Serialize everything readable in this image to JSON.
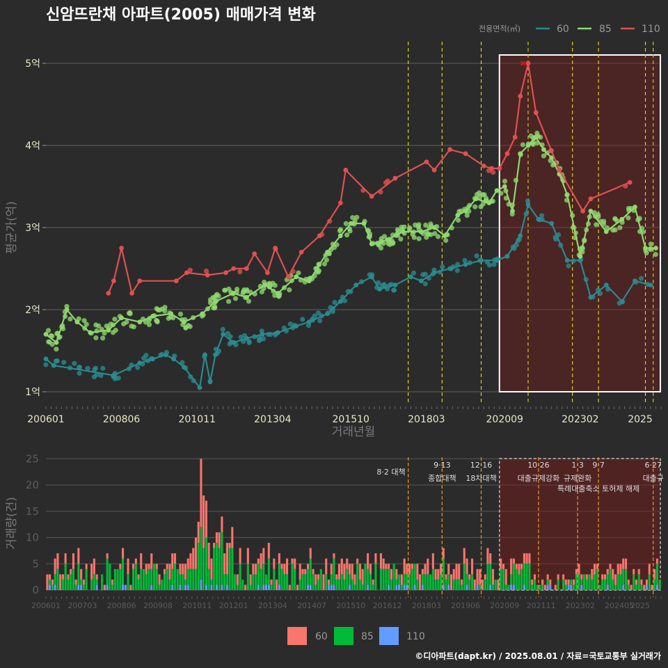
{
  "title": "신암뜨란채 아파트(2005) 매매가격 변화",
  "footer": "©디아파트(dapt.kr) / 2025.08.01 / 자료=국토교통부 실거래가",
  "colors": {
    "s60": "#2b8a8f",
    "s85": "#8fd870",
    "s110": "#e05050",
    "v60": "#f8766d",
    "v85": "#00ba38",
    "v110": "#619cff"
  },
  "chart_data": [
    {
      "type": "line",
      "xlabel": "거래년월",
      "ylabel": "평균가(억)",
      "legend_title": "전용면적(㎡)",
      "legend_position": "top-right",
      "x_ticks": [
        "200601",
        "200806",
        "201011",
        "201304",
        "201510",
        "201803",
        "202009",
        "202302",
        "2025"
      ],
      "y_ticks": [
        "1억",
        "2억",
        "3억",
        "4억",
        "5억"
      ],
      "y_range": [
        0.8,
        5.3
      ],
      "grid": true,
      "highlight_box": {
        "from": "2020-07",
        "to": "2025-09"
      },
      "series": [
        {
          "name": "60",
          "points": [
            [
              "2006-01",
              1.4
            ],
            [
              "2006-04",
              1.32
            ],
            [
              "2008-03",
              1.2
            ],
            [
              "2009-01",
              1.35
            ],
            [
              "2009-06",
              1.4
            ],
            [
              "2009-11",
              1.45
            ],
            [
              "2010-02",
              1.4
            ],
            [
              "2010-06",
              1.3
            ],
            [
              "2010-12",
              1.05
            ],
            [
              "2011-02",
              1.45
            ],
            [
              "2011-04",
              1.12
            ],
            [
              "2011-06",
              1.45
            ],
            [
              "2011-09",
              1.7
            ],
            [
              "2012-01",
              1.6
            ],
            [
              "2012-06",
              1.65
            ],
            [
              "2012-12",
              1.7
            ],
            [
              "2013-06",
              1.72
            ],
            [
              "2014-01",
              1.8
            ],
            [
              "2014-06",
              1.85
            ],
            [
              "2015-01",
              1.95
            ],
            [
              "2015-06",
              2.1
            ],
            [
              "2015-12",
              2.3
            ],
            [
              "2016-06",
              2.4
            ],
            [
              "2016-09",
              2.25
            ],
            [
              "2017-03",
              2.3
            ],
            [
              "2017-09",
              2.4
            ],
            [
              "2018-01",
              2.35
            ],
            [
              "2018-06",
              2.45
            ],
            [
              "2018-12",
              2.5
            ],
            [
              "2019-06",
              2.55
            ],
            [
              "2019-12",
              2.6
            ],
            [
              "2020-06",
              2.6
            ],
            [
              "2020-10",
              2.65
            ],
            [
              "2021-03",
              2.9
            ],
            [
              "2021-06",
              3.28
            ],
            [
              "2021-10",
              3.1
            ],
            [
              "2022-03",
              3.05
            ],
            [
              "2022-09",
              2.6
            ],
            [
              "2023-02",
              2.6
            ],
            [
              "2023-06",
              2.15
            ],
            [
              "2023-12",
              2.3
            ],
            [
              "2024-06",
              2.1
            ],
            [
              "2024-11",
              2.35
            ],
            [
              "2025-05",
              2.3
            ]
          ]
        },
        {
          "name": "85",
          "points": [
            [
              "2006-01",
              1.7
            ],
            [
              "2006-05",
              1.6
            ],
            [
              "2006-09",
              2.0
            ],
            [
              "2007-01",
              1.85
            ],
            [
              "2007-06",
              1.72
            ],
            [
              "2008-01",
              1.75
            ],
            [
              "2008-06",
              1.9
            ],
            [
              "2009-01",
              1.85
            ],
            [
              "2009-06",
              1.92
            ],
            [
              "2010-01",
              1.95
            ],
            [
              "2010-06",
              1.85
            ],
            [
              "2011-01",
              1.95
            ],
            [
              "2011-06",
              2.1
            ],
            [
              "2012-01",
              2.2
            ],
            [
              "2012-06",
              2.15
            ],
            [
              "2013-01",
              2.3
            ],
            [
              "2013-06",
              2.2
            ],
            [
              "2014-01",
              2.4
            ],
            [
              "2014-06",
              2.35
            ],
            [
              "2015-01",
              2.7
            ],
            [
              "2015-06",
              2.9
            ],
            [
              "2015-10",
              3.05
            ],
            [
              "2016-03",
              3.05
            ],
            [
              "2016-06",
              2.8
            ],
            [
              "2016-12",
              2.85
            ],
            [
              "2017-06",
              2.95
            ],
            [
              "2018-01",
              2.95
            ],
            [
              "2018-06",
              3.0
            ],
            [
              "2018-10",
              2.9
            ],
            [
              "2019-03",
              3.15
            ],
            [
              "2019-06",
              3.2
            ],
            [
              "2019-10",
              3.35
            ],
            [
              "2020-03",
              3.3
            ],
            [
              "2020-06",
              3.45
            ],
            [
              "2020-09",
              3.5
            ],
            [
              "2020-12",
              3.2
            ],
            [
              "2021-03",
              3.9
            ],
            [
              "2021-06",
              4.0
            ],
            [
              "2021-09",
              4.1
            ],
            [
              "2021-12",
              3.95
            ],
            [
              "2022-03",
              3.85
            ],
            [
              "2022-06",
              3.65
            ],
            [
              "2022-09",
              3.4
            ],
            [
              "2023-02",
              2.65
            ],
            [
              "2023-06",
              3.2
            ],
            [
              "2023-12",
              2.95
            ],
            [
              "2024-06",
              3.1
            ],
            [
              "2024-11",
              3.25
            ],
            [
              "2025-03",
              2.75
            ],
            [
              "2025-07",
              2.75
            ]
          ]
        },
        {
          "name": "110",
          "points": [
            [
              "2008-01",
              2.2
            ],
            [
              "2008-03",
              2.35
            ],
            [
              "2008-06",
              2.75
            ],
            [
              "2008-10",
              2.2
            ],
            [
              "2009-01",
              2.35
            ],
            [
              "2010-03",
              2.35
            ],
            [
              "2010-07",
              2.45
            ],
            [
              "2011-03",
              2.42
            ],
            [
              "2011-10",
              2.45
            ],
            [
              "2012-01",
              2.5
            ],
            [
              "2012-06",
              2.5
            ],
            [
              "2012-09",
              2.68
            ],
            [
              "2013-02",
              2.45
            ],
            [
              "2013-05",
              2.75
            ],
            [
              "2013-10",
              2.4
            ],
            [
              "2014-03",
              2.7
            ],
            [
              "2014-10",
              2.9
            ],
            [
              "2015-06",
              3.3
            ],
            [
              "2015-08",
              3.7
            ],
            [
              "2016-06",
              3.38
            ],
            [
              "2017-03",
              3.6
            ],
            [
              "2018-03",
              3.8
            ],
            [
              "2018-06",
              3.7
            ],
            [
              "2018-12",
              3.95
            ],
            [
              "2019-06",
              3.9
            ],
            [
              "2020-01",
              3.75
            ],
            [
              "2020-04",
              3.72
            ],
            [
              "2020-07",
              3.72
            ],
            [
              "2020-10",
              3.9
            ],
            [
              "2021-01",
              4.1
            ],
            [
              "2021-03",
              4.6
            ],
            [
              "2021-06",
              5.0
            ],
            [
              "2021-09",
              4.4
            ],
            [
              "2022-06",
              3.7
            ],
            [
              "2023-03",
              3.2
            ],
            [
              "2023-06",
              3.35
            ],
            [
              "2024-09",
              3.55
            ]
          ]
        }
      ],
      "policy_lines": [
        "2017-08",
        "2018-09",
        "2019-12",
        "2021-06",
        "2022-11",
        "2023-09",
        "2025-03",
        "2025-06"
      ]
    },
    {
      "type": "bar",
      "ylabel": "거래량(건)",
      "y_ticks": [
        "0",
        "5",
        "10",
        "15",
        "20",
        "25"
      ],
      "y_range": [
        0,
        26
      ],
      "stacked": true,
      "x_ticks": [
        "200601",
        "200703",
        "200806",
        "200908",
        "201011",
        "201201",
        "201304",
        "201407",
        "201510",
        "201612",
        "201803",
        "201906",
        "202009",
        "202111",
        "202302",
        "202405",
        "2025"
      ],
      "legend": [
        "60",
        "85",
        "110"
      ],
      "legend_position": "bottom",
      "highlight_box": {
        "from": "2020-07",
        "to": "2025-09"
      },
      "peak": {
        "month": "2010-12",
        "total": 25
      },
      "events": [
        {
          "date": "2017-08",
          "line1": "8·2 대책",
          "line2": ""
        },
        {
          "date": "2018-09",
          "line1": "9·13",
          "line2": "종합대책"
        },
        {
          "date": "2019-12",
          "line1": "12·16",
          "line2": "18차대책"
        },
        {
          "date": "2021-10",
          "line1": "10·26",
          "line2": "대출규제강화"
        },
        {
          "date": "2023-01",
          "line1": "1·3",
          "line2": "규제완화"
        },
        {
          "date": "2023-09",
          "line1": "9·7",
          "line2": "특례대출축소 토허제 해제"
        },
        {
          "date": "2025-06",
          "line1": "6·27",
          "line2": "대출규"
        }
      ]
    }
  ]
}
